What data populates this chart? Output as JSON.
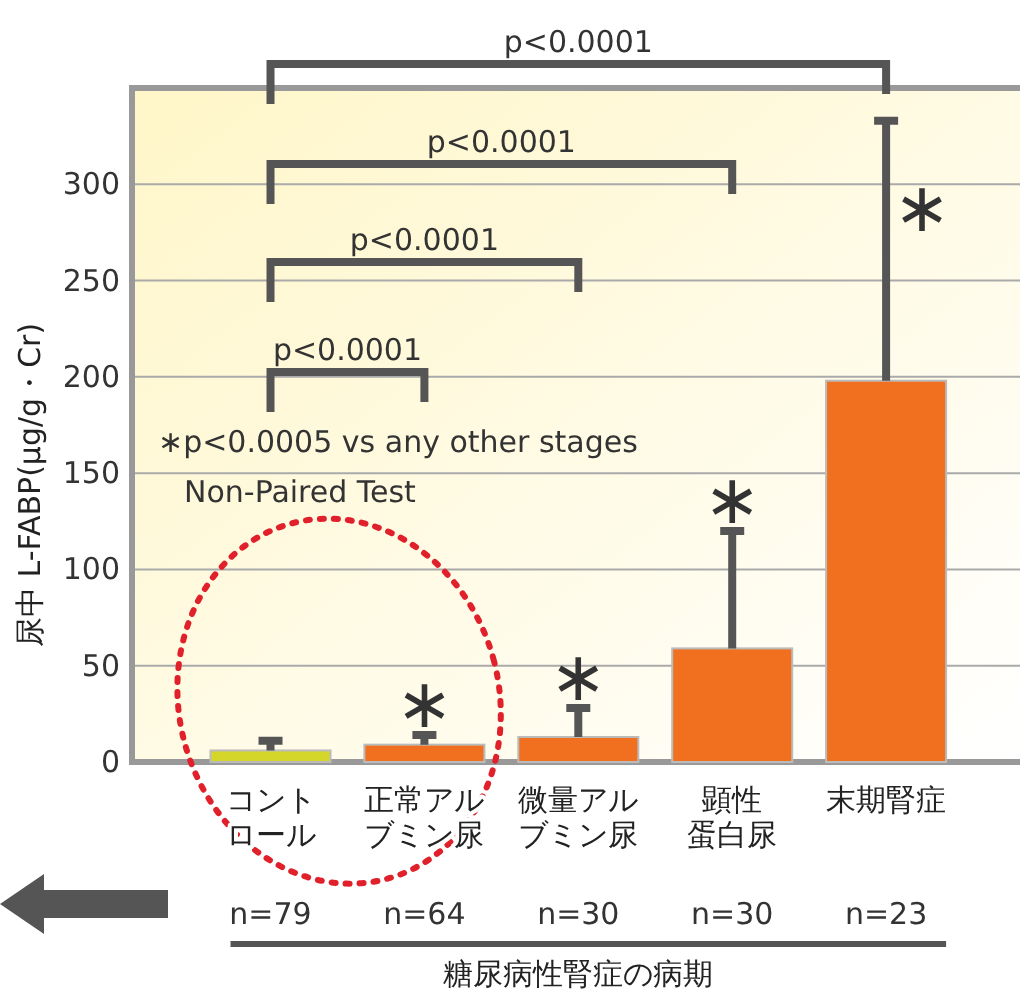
{
  "chart_data": {
    "type": "bar",
    "ylabel": "尿中 L-FABP(μg/g・Cr)",
    "xlabel": "糖尿病性腎症の病期",
    "categories": [
      "コントロール",
      "正常アルブミン尿",
      "微量アルブミン尿",
      "顕性蛋白尿",
      "末期腎症"
    ],
    "values": [
      6,
      9,
      13,
      59,
      198
    ],
    "colors": [
      "#d4d62a",
      "#f07020",
      "#f07020",
      "#f07020",
      "#f07020"
    ],
    "errors": [
      [
        6,
        11
      ],
      [
        9,
        14
      ],
      [
        13,
        28
      ],
      [
        59,
        120
      ],
      [
        198,
        333
      ]
    ],
    "ylim": [
      0,
      350
    ],
    "yticks": [
      0,
      50,
      100,
      150,
      200,
      250,
      300
    ],
    "grid": "y",
    "annotations": [
      "p<0.0001",
      "p<0.0001",
      "p<0.0001",
      "p<0.0001",
      "∗p<0.0005 vs any other stages",
      "Non-Paired Test",
      "n=79",
      "n=64",
      "n=30",
      "n=30",
      "n=23",
      "∗",
      "∗",
      "∗",
      "∗"
    ]
  }
}
